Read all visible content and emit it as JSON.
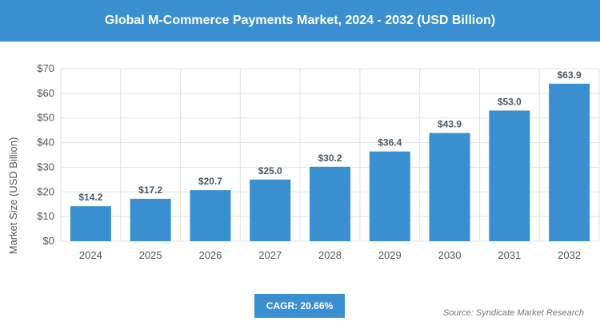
{
  "title": "Global M-Commerce Payments Market, 2024 - 2032 (USD Billion)",
  "cagr": "CAGR: 20.66%",
  "source": "Source: Syndicate Market Research",
  "colors": {
    "bar": "#3a8fd0",
    "header": "#3a8fd0",
    "grid": "#e3e3e3"
  },
  "chart_data": {
    "type": "bar",
    "categories": [
      "2024",
      "2025",
      "2026",
      "2027",
      "2028",
      "2029",
      "2030",
      "2031",
      "2032"
    ],
    "values": [
      14.2,
      17.2,
      20.7,
      25.0,
      30.2,
      36.4,
      43.9,
      53.0,
      63.9
    ],
    "value_labels": [
      "$14.2",
      "$17.2",
      "$20.7",
      "$25.0",
      "$30.2",
      "$36.4",
      "$43.9",
      "$53.0",
      "$63.9"
    ],
    "ylabel": "Market Size (USD Billion)",
    "ylim": [
      0,
      70
    ],
    "yticks": [
      0,
      10,
      20,
      30,
      40,
      50,
      60,
      70
    ],
    "ytick_labels": [
      "$0",
      "$10",
      "$20",
      "$30",
      "$40",
      "$50",
      "$60",
      "$70"
    ],
    "grid": true
  }
}
